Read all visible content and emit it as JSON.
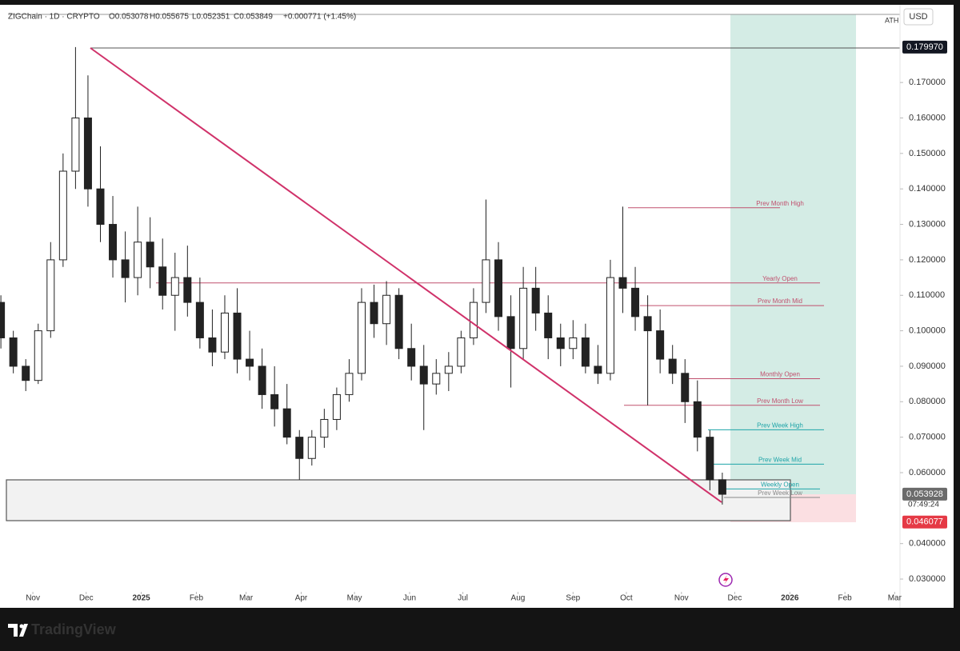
{
  "chart_data": {
    "type": "candlestick",
    "header": {
      "symbol": "ZIGChain · 1D · CRYPTO",
      "open": "O0.053078",
      "high": "H0.055675",
      "low": "L0.052351",
      "close": "C0.053849",
      "change": "+0.000771 (+1.45%)"
    },
    "currency": "USD",
    "ath_label": "ATH",
    "countdown": "07:49:24",
    "brand": "TradingView",
    "xlim": [
      -18.5,
      488
    ],
    "ylim": [
      0.0264,
      0.1892
    ],
    "xticks": [
      {
        "value": 0,
        "label": "Nov"
      },
      {
        "value": 30,
        "label": "Dec"
      },
      {
        "value": 61,
        "label": "2025"
      },
      {
        "value": 92,
        "label": "Feb"
      },
      {
        "value": 120,
        "label": "Mar"
      },
      {
        "value": 151,
        "label": "Apr"
      },
      {
        "value": 181,
        "label": "May"
      },
      {
        "value": 212,
        "label": "Jun"
      },
      {
        "value": 242,
        "label": "Jul"
      },
      {
        "value": 273,
        "label": "Aug"
      },
      {
        "value": 304,
        "label": "Sep"
      },
      {
        "value": 334,
        "label": "Oct"
      },
      {
        "value": 365,
        "label": "Nov"
      },
      {
        "value": 395,
        "label": "Dec"
      },
      {
        "value": 426,
        "label": "2026"
      },
      {
        "value": 457,
        "label": "Feb"
      },
      {
        "value": 485,
        "label": "Mar"
      }
    ],
    "yticks": [
      {
        "value": 0.03,
        "label": "0.030000"
      },
      {
        "value": 0.04,
        "label": "0.040000"
      },
      {
        "value": 0.06,
        "label": "0.060000"
      },
      {
        "value": 0.07,
        "label": "0.070000"
      },
      {
        "value": 0.08,
        "label": "0.080000"
      },
      {
        "value": 0.09,
        "label": "0.090000"
      },
      {
        "value": 0.1,
        "label": "0.100000"
      },
      {
        "value": 0.11,
        "label": "0.110000"
      },
      {
        "value": 0.12,
        "label": "0.120000"
      },
      {
        "value": 0.13,
        "label": "0.130000"
      },
      {
        "value": 0.14,
        "label": "0.140000"
      },
      {
        "value": 0.15,
        "label": "0.150000"
      },
      {
        "value": 0.16,
        "label": "0.160000"
      },
      {
        "value": 0.17,
        "label": "0.170000"
      }
    ],
    "badges": [
      {
        "value": 0.17997,
        "label": "0.179970",
        "color": "#131722"
      },
      {
        "value": 0.053928,
        "label": "0.053928",
        "color": "#6b6b6b"
      },
      {
        "value": 0.046077,
        "label": "0.046077",
        "color": "#e53945"
      }
    ],
    "levels": [
      {
        "name": "Prev Month High",
        "value": 0.1347,
        "color": "#c0506e"
      },
      {
        "name": "Yearly Open",
        "value": 0.1135,
        "color": "#c0506e"
      },
      {
        "name": "Prev Month Mid",
        "value": 0.1071,
        "color": "#c0506e"
      },
      {
        "name": "Monthly Open",
        "value": 0.0865,
        "color": "#c0506e"
      },
      {
        "name": "Prev Month Low",
        "value": 0.079,
        "color": "#c0506e"
      },
      {
        "name": "Prev Week High",
        "value": 0.0721,
        "color": "#1ea4a8"
      },
      {
        "name": "Prev Week Mid",
        "value": 0.0624,
        "color": "#1ea4a8"
      },
      {
        "name": "Weekly Open",
        "value": 0.0554,
        "color": "#1ea4a8"
      },
      {
        "name": "Prev Week Low",
        "value": 0.053,
        "color": "#888888"
      }
    ],
    "x": [
      -18,
      -11,
      -4,
      3,
      10,
      17,
      24,
      31,
      38,
      45,
      52,
      59,
      66,
      73,
      80,
      87,
      94,
      101,
      108,
      115,
      122,
      129,
      136,
      143,
      150,
      157,
      164,
      171,
      178,
      185,
      192,
      199,
      206,
      213,
      220,
      227,
      234,
      241,
      248,
      255,
      262,
      269,
      276,
      283,
      290,
      297,
      304,
      311,
      318,
      325,
      332,
      339,
      346,
      353,
      360,
      367,
      374,
      381,
      388
    ],
    "open": [
      0.108,
      0.098,
      0.09,
      0.086,
      0.1,
      0.12,
      0.145,
      0.16,
      0.14,
      0.13,
      0.12,
      0.115,
      0.125,
      0.118,
      0.11,
      0.115,
      0.108,
      0.098,
      0.094,
      0.105,
      0.092,
      0.09,
      0.082,
      0.078,
      0.07,
      0.064,
      0.07,
      0.075,
      0.082,
      0.088,
      0.108,
      0.102,
      0.11,
      0.095,
      0.09,
      0.085,
      0.088,
      0.09,
      0.098,
      0.108,
      0.12,
      0.104,
      0.095,
      0.112,
      0.105,
      0.098,
      0.095,
      0.098,
      0.09,
      0.088,
      0.115,
      0.112,
      0.104,
      0.1,
      0.092,
      0.088,
      0.08,
      0.07,
      0.058
    ],
    "high": [
      0.11,
      0.1,
      0.092,
      0.102,
      0.125,
      0.15,
      0.17997,
      0.172,
      0.152,
      0.138,
      0.128,
      0.135,
      0.132,
      0.126,
      0.122,
      0.124,
      0.115,
      0.106,
      0.11,
      0.112,
      0.1,
      0.095,
      0.09,
      0.085,
      0.072,
      0.072,
      0.078,
      0.084,
      0.092,
      0.112,
      0.113,
      0.114,
      0.112,
      0.102,
      0.096,
      0.092,
      0.094,
      0.1,
      0.112,
      0.137,
      0.125,
      0.11,
      0.118,
      0.118,
      0.11,
      0.102,
      0.103,
      0.102,
      0.096,
      0.12,
      0.135,
      0.118,
      0.11,
      0.106,
      0.096,
      0.092,
      0.086,
      0.072,
      0.06
    ],
    "low": [
      0.095,
      0.088,
      0.083,
      0.085,
      0.098,
      0.118,
      0.14,
      0.135,
      0.125,
      0.115,
      0.108,
      0.11,
      0.112,
      0.106,
      0.1,
      0.104,
      0.095,
      0.09,
      0.092,
      0.088,
      0.086,
      0.078,
      0.073,
      0.068,
      0.058,
      0.062,
      0.067,
      0.072,
      0.08,
      0.086,
      0.098,
      0.096,
      0.092,
      0.086,
      0.072,
      0.082,
      0.083,
      0.088,
      0.096,
      0.105,
      0.1,
      0.084,
      0.092,
      0.1,
      0.092,
      0.09,
      0.092,
      0.088,
      0.085,
      0.086,
      0.105,
      0.1,
      0.079,
      0.088,
      0.085,
      0.074,
      0.066,
      0.055,
      0.051
    ],
    "close": [
      0.098,
      0.09,
      0.086,
      0.1,
      0.12,
      0.145,
      0.16,
      0.14,
      0.13,
      0.12,
      0.115,
      0.125,
      0.118,
      0.11,
      0.115,
      0.108,
      0.098,
      0.094,
      0.105,
      0.092,
      0.09,
      0.082,
      0.078,
      0.07,
      0.064,
      0.07,
      0.075,
      0.082,
      0.088,
      0.108,
      0.102,
      0.11,
      0.095,
      0.09,
      0.085,
      0.088,
      0.09,
      0.098,
      0.108,
      0.12,
      0.104,
      0.095,
      0.112,
      0.105,
      0.098,
      0.095,
      0.098,
      0.09,
      0.088,
      0.115,
      0.112,
      0.104,
      0.1,
      0.092,
      0.088,
      0.08,
      0.07,
      0.058,
      0.0539
    ]
  }
}
